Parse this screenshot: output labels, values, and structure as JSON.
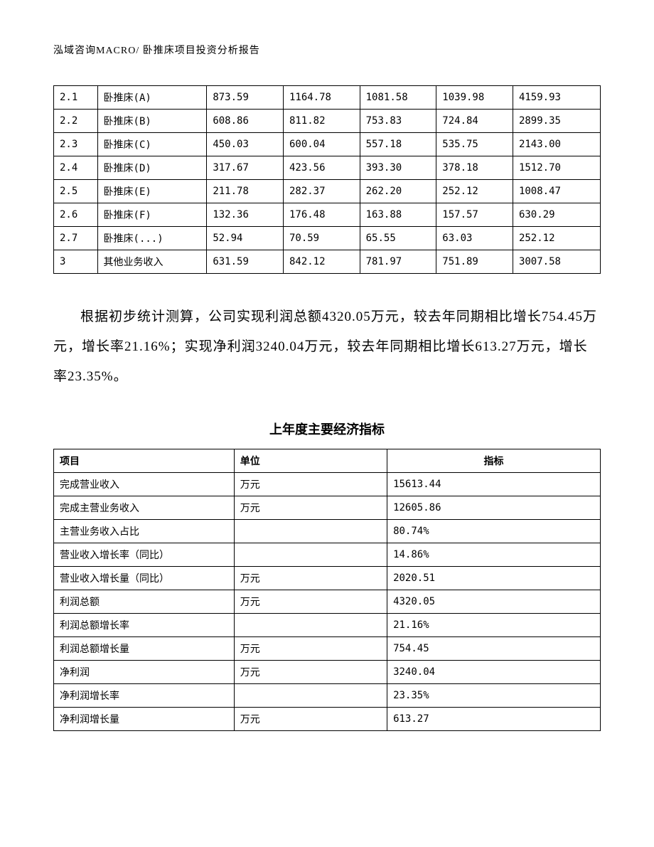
{
  "header": {
    "text": "泓域咨询MACRO/   卧推床项目投资分析报告"
  },
  "table1": {
    "type": "table",
    "col_widths_pct": [
      8,
      20,
      14,
      14,
      14,
      14,
      16
    ],
    "border_color": "#000000",
    "background_color": "#ffffff",
    "font_size_pt": 10,
    "rows": [
      [
        "2.1",
        "卧推床(A)",
        "873.59",
        "1164.78",
        "1081.58",
        "1039.98",
        "4159.93"
      ],
      [
        "2.2",
        "卧推床(B)",
        "608.86",
        "811.82",
        "753.83",
        "724.84",
        "2899.35"
      ],
      [
        "2.3",
        "卧推床(C)",
        "450.03",
        "600.04",
        "557.18",
        "535.75",
        "2143.00"
      ],
      [
        "2.4",
        "卧推床(D)",
        "317.67",
        "423.56",
        "393.30",
        "378.18",
        "1512.70"
      ],
      [
        "2.5",
        "卧推床(E)",
        "211.78",
        "282.37",
        "262.20",
        "252.12",
        "1008.47"
      ],
      [
        "2.6",
        "卧推床(F)",
        "132.36",
        "176.48",
        "163.88",
        "157.57",
        "630.29"
      ],
      [
        "2.7",
        "卧推床(...)",
        "52.94",
        "70.59",
        "65.55",
        "63.03",
        "252.12"
      ],
      [
        "3",
        "其他业务收入",
        "631.59",
        "842.12",
        "781.97",
        "751.89",
        "3007.58"
      ]
    ]
  },
  "paragraph": {
    "text": "根据初步统计测算，公司实现利润总额4320.05万元，较去年同期相比增长754.45万元，增长率21.16%；实现净利润3240.04万元，较去年同期相比增长613.27万元，增长率23.35%。",
    "font_size_pt": 14,
    "line_height": 2.2,
    "text_indent_em": 2
  },
  "table2": {
    "type": "table",
    "title": "上年度主要经济指标",
    "title_font_size_pt": 14,
    "title_font_weight": "bold",
    "headers": [
      "项目",
      "单位",
      "指标"
    ],
    "col_widths_pct": [
      33,
      28,
      39
    ],
    "border_color": "#000000",
    "background_color": "#ffffff",
    "font_size_pt": 10,
    "rows": [
      [
        "完成营业收入",
        "万元",
        "15613.44"
      ],
      [
        "完成主营业务收入",
        "万元",
        "12605.86"
      ],
      [
        "主营业务收入占比",
        "",
        "80.74%"
      ],
      [
        "营业收入增长率（同比）",
        "",
        "14.86%"
      ],
      [
        "营业收入增长量（同比）",
        "万元",
        "2020.51"
      ],
      [
        "利润总额",
        "万元",
        "4320.05"
      ],
      [
        "利润总额增长率",
        "",
        "21.16%"
      ],
      [
        "利润总额增长量",
        "万元",
        "754.45"
      ],
      [
        "净利润",
        "万元",
        "3240.04"
      ],
      [
        "净利润增长率",
        "",
        "23.35%"
      ],
      [
        "净利润增长量",
        "万元",
        "613.27"
      ]
    ]
  }
}
